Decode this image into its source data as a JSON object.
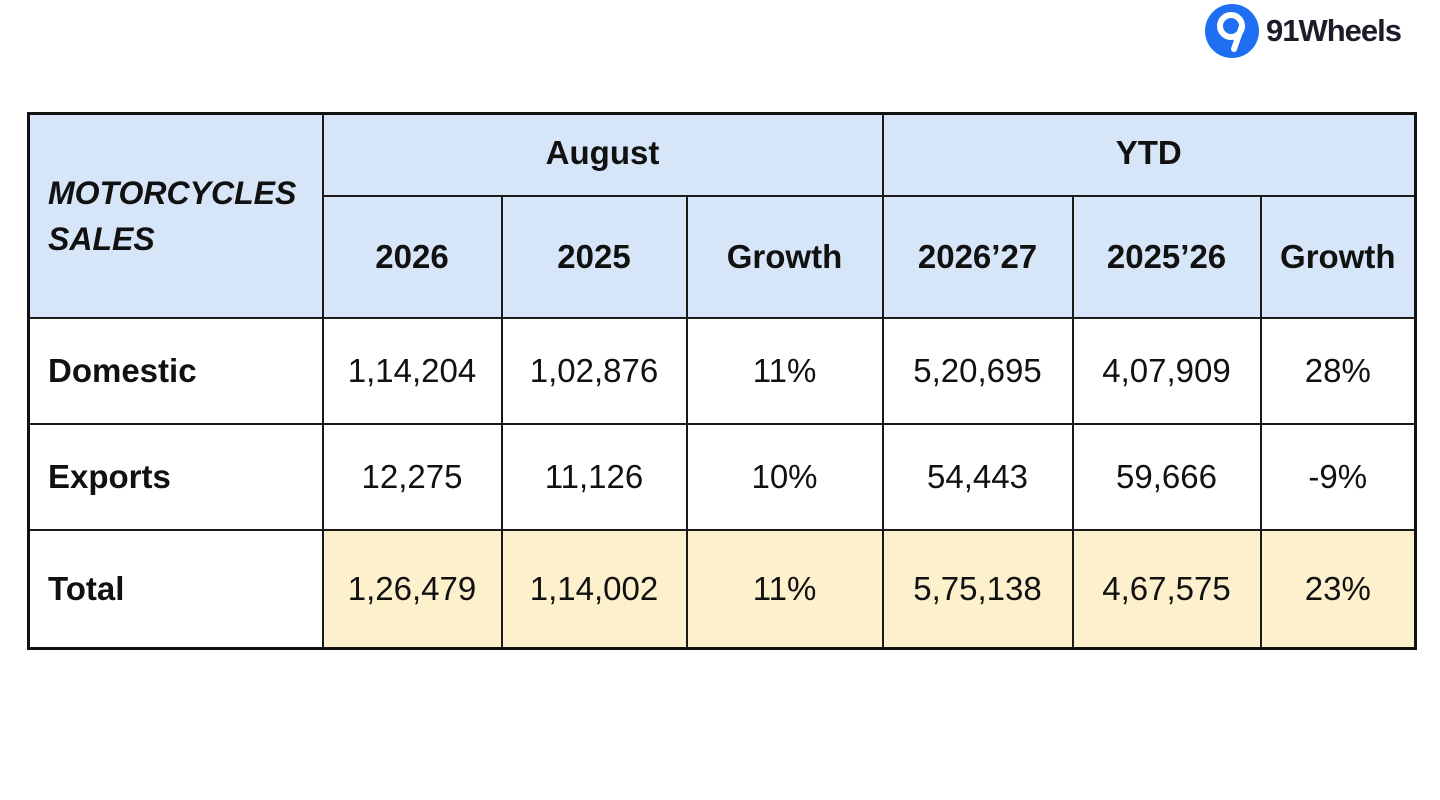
{
  "brand": {
    "name": "91Wheels",
    "accent_color": "#1e6ff1"
  },
  "table": {
    "title_line1": "MOTORCYCLES",
    "title_line2": "SALES",
    "groups": [
      "August",
      "YTD"
    ],
    "subheaders": [
      "2026",
      "2025",
      "Growth",
      "2026’27",
      "2025’26",
      "Growth"
    ],
    "rows": [
      {
        "label": "Domestic",
        "values": [
          "1,14,204",
          "1,02,876",
          "11%",
          "5,20,695",
          "4,07,909",
          "28%"
        ]
      },
      {
        "label": "Exports",
        "values": [
          "12,275",
          "11,126",
          "10%",
          "54,443",
          "59,666",
          "-9%"
        ]
      },
      {
        "label": "Total",
        "values": [
          "1,26,479",
          "1,14,002",
          "11%",
          "5,75,138",
          "4,67,575",
          "23%"
        ]
      }
    ],
    "colors": {
      "header_bg": "#d6e6f8",
      "total_highlight_bg": "#fdf0cc",
      "border": "#111111"
    }
  }
}
